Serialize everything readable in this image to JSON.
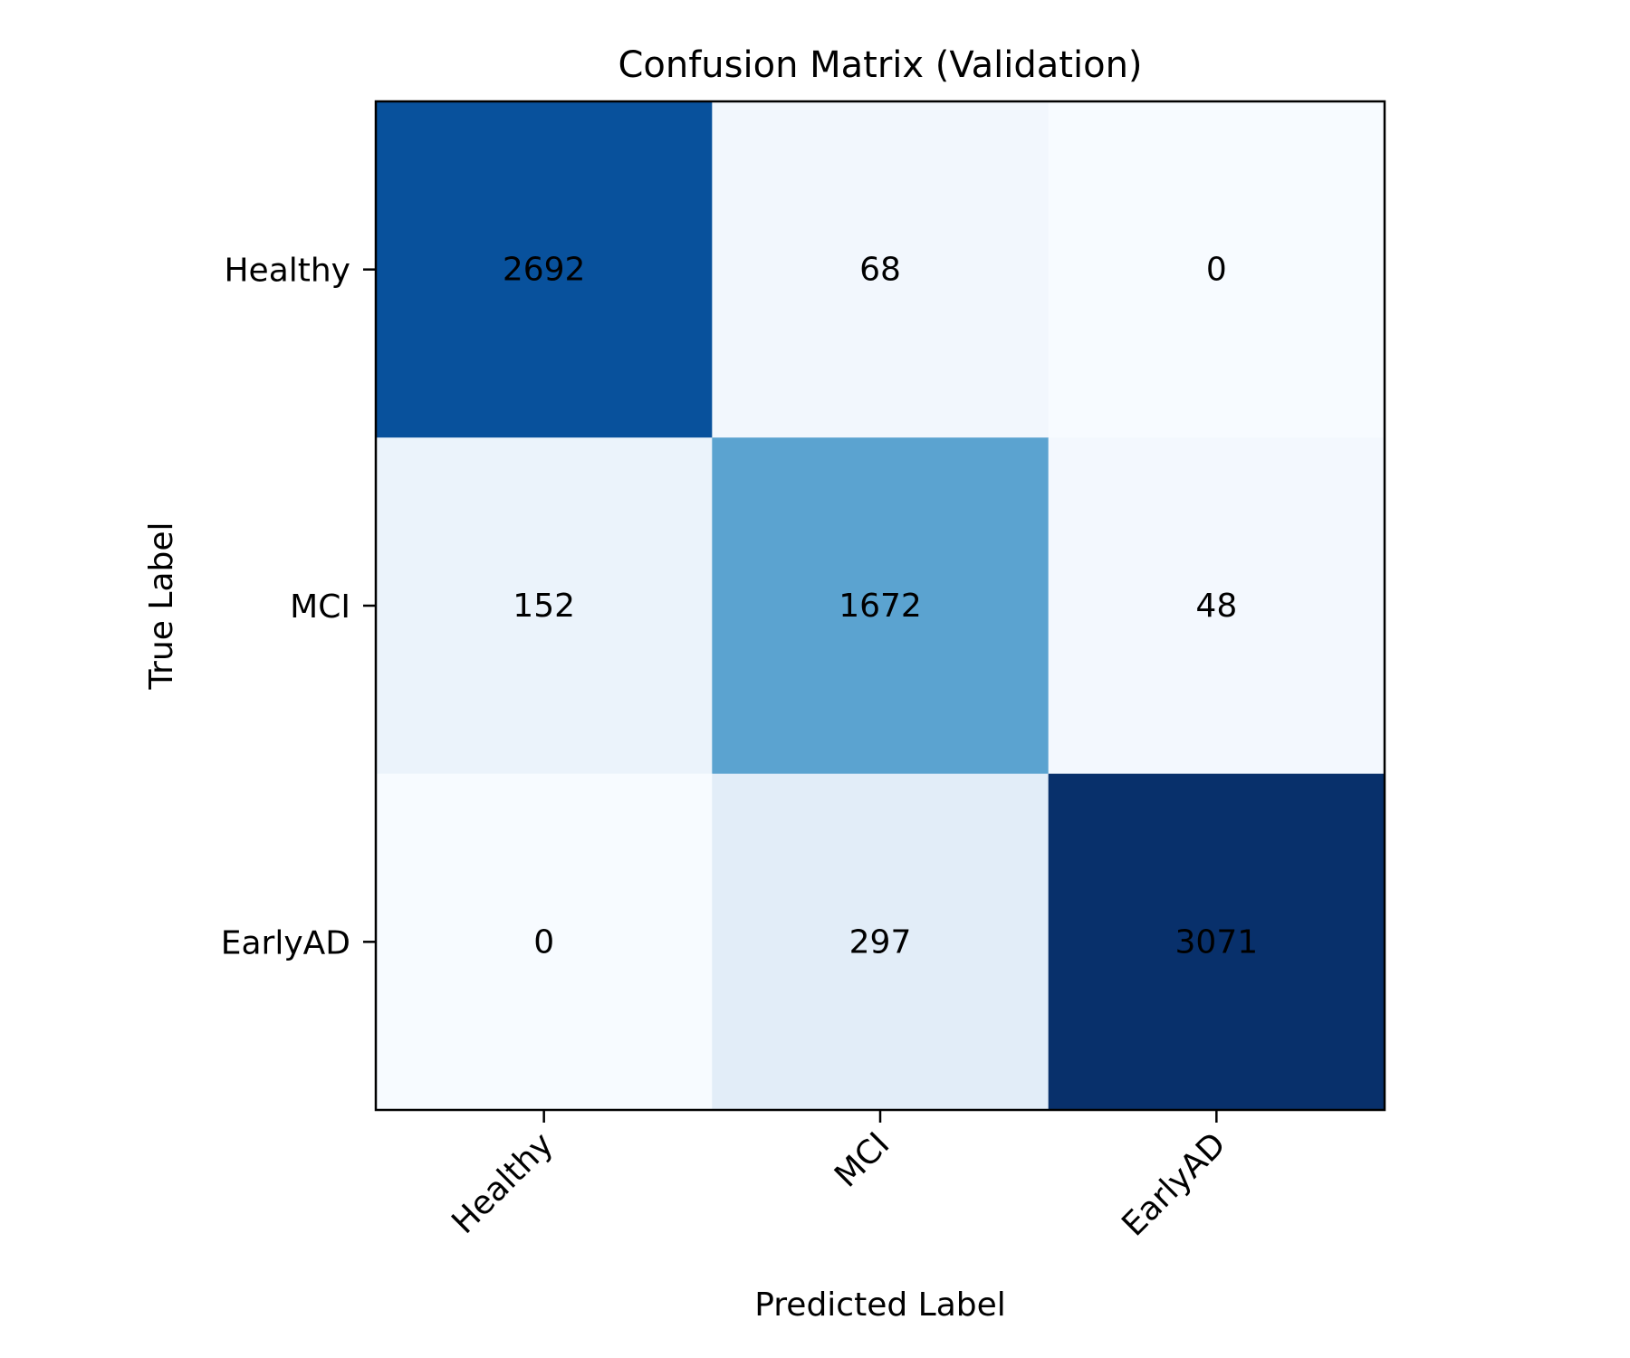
{
  "chart_data": {
    "type": "heatmap",
    "title": "Confusion Matrix (Validation)",
    "xlabel": "Predicted Label",
    "ylabel": "True Label",
    "x_categories": [
      "Healthy",
      "MCI",
      "EarlyAD"
    ],
    "y_categories": [
      "Healthy",
      "MCI",
      "EarlyAD"
    ],
    "values": [
      [
        2692,
        68,
        0
      ],
      [
        152,
        1672,
        48
      ],
      [
        0,
        297,
        3071
      ]
    ],
    "colormap": "Blues",
    "cell_colors": [
      [
        "#08519c",
        "#f2f7fd",
        "#f7fbff"
      ],
      [
        "#ebf3fb",
        "#5ba3d0",
        "#f3f8fe"
      ],
      [
        "#f7fbff",
        "#e2edf8",
        "#08306b"
      ]
    ],
    "grid": false
  }
}
